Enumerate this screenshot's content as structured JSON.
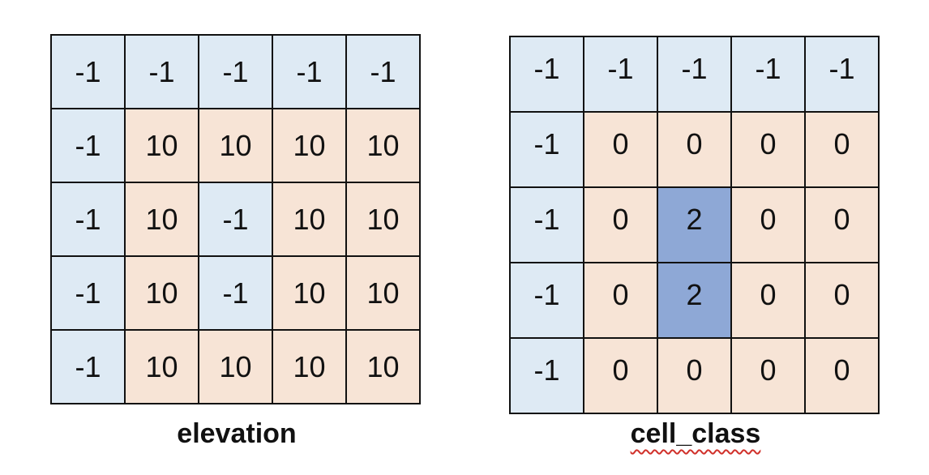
{
  "colors": {
    "boundary": "#deeaf4",
    "land": "#f7e4d6",
    "depression": "#8ea8d6",
    "border": "#111111"
  },
  "grids": [
    {
      "caption": "elevation",
      "values": [
        [
          "-1",
          "-1",
          "-1",
          "-1",
          "-1"
        ],
        [
          "-1",
          "10",
          "10",
          "10",
          "10"
        ],
        [
          "-1",
          "10",
          "-1",
          "10",
          "10"
        ],
        [
          "-1",
          "10",
          "-1",
          "10",
          "10"
        ],
        [
          "-1",
          "10",
          "10",
          "10",
          "10"
        ]
      ]
    },
    {
      "caption": "cell_class",
      "values": [
        [
          "-1",
          "-1",
          "-1",
          "-1",
          "-1"
        ],
        [
          "-1",
          "0",
          "0",
          "0",
          "0"
        ],
        [
          "-1",
          "0",
          "2",
          "0",
          "0"
        ],
        [
          "-1",
          "0",
          "2",
          "0",
          "0"
        ],
        [
          "-1",
          "0",
          "0",
          "0",
          "0"
        ]
      ]
    }
  ]
}
